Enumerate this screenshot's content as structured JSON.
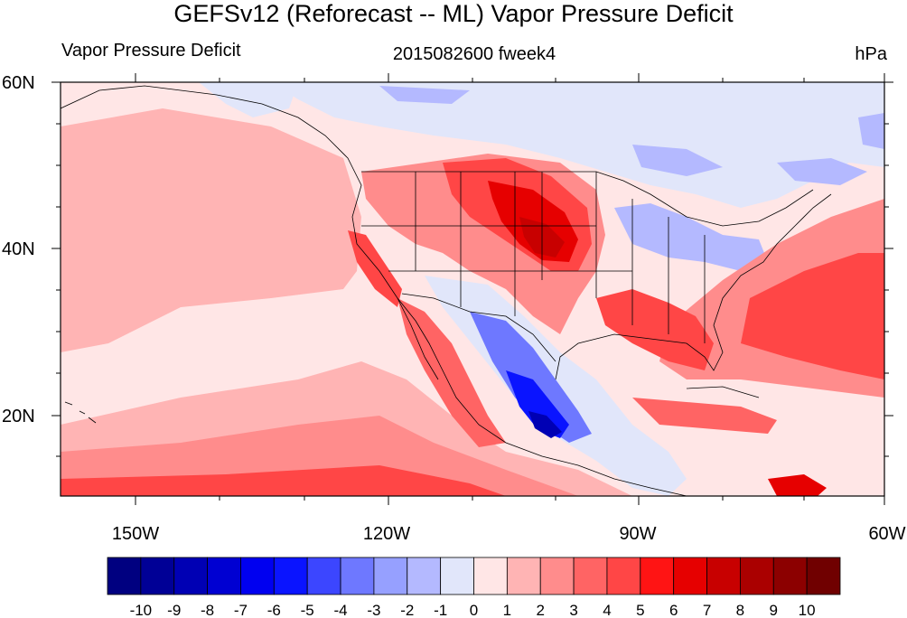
{
  "title": "GEFSv12 (Reforecast -- ML) Vapor Pressure Deficit",
  "left_string": "Vapor Pressure Deficit",
  "center_string": "2015082600 fweek4",
  "right_string": "hPa",
  "lat_labels": [
    "60N",
    "40N",
    "20N"
  ],
  "lon_labels": [
    "150W",
    "120W",
    "90W",
    "60W"
  ],
  "colorbar": {
    "labels": [
      "-10",
      "-9",
      "-8",
      "-7",
      "-6",
      "-5",
      "-4",
      "-3",
      "-2",
      "-1",
      "0",
      "1",
      "2",
      "3",
      "4",
      "5",
      "6",
      "7",
      "8",
      "9",
      "10"
    ],
    "colors": [
      "#000080",
      "#000096",
      "#0000b4",
      "#0000d2",
      "#0000f0",
      "#0a14ff",
      "#3c46ff",
      "#6e78ff",
      "#96a0ff",
      "#b4b9ff",
      "#e1e6fa",
      "#ffe6e6",
      "#ffb4b4",
      "#ff8c8c",
      "#ff6464",
      "#ff4646",
      "#ff1414",
      "#e60000",
      "#c80000",
      "#aa0000",
      "#8c0000",
      "#700000"
    ]
  },
  "map": {
    "extent": {
      "lon_min": -160,
      "lon_max": -60,
      "lat_min": 10,
      "lat_max": 60
    },
    "background_color": "#ffe6e6"
  }
}
